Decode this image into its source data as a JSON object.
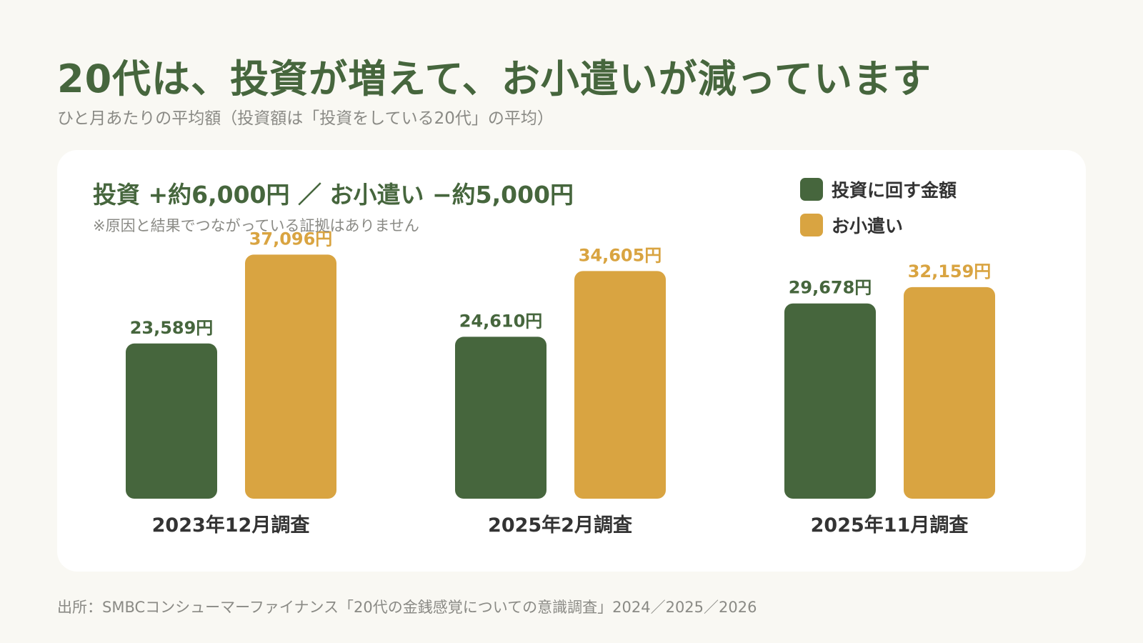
{
  "title": "20代は、投資が増えて、お小遣いが減っています",
  "subtitle": "ひと月あたりの平均額（投資額は「投資をしている20代」の平均）",
  "card": {
    "headline": "投資 +約6,000円 ／ お小遣い −約5,000円",
    "note": "※原因と結果でつながっている証拠はありません"
  },
  "legend": [
    {
      "label": "投資に回す金額",
      "color": "#46663d"
    },
    {
      "label": "お小遣い",
      "color": "#d9a441"
    }
  ],
  "source": "出所：SMBCコンシューマーファイナンス「20代の金銭感覚についての意識調査」2024／2025／2026",
  "chart_data": {
    "type": "bar",
    "categories": [
      "2023年12月調査",
      "2025年2月調査",
      "2025年11月調査"
    ],
    "series": [
      {
        "name": "投資に回す金額",
        "values": [
          23589,
          24610,
          29678
        ],
        "labels": [
          "23,589円",
          "24,610円",
          "29,678円"
        ],
        "color": "#46663d"
      },
      {
        "name": "お小遣い",
        "values": [
          37096,
          34605,
          32159
        ],
        "labels": [
          "37,096円",
          "34,605円",
          "32,159円"
        ],
        "color": "#d9a441"
      }
    ],
    "ylim": [
      0,
      53000
    ],
    "grid": false,
    "legend_position": "top-right"
  }
}
